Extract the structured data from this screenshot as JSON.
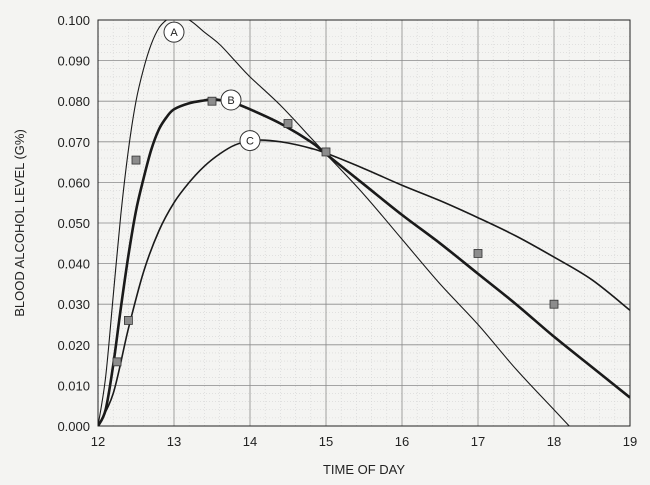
{
  "chart_data": {
    "type": "line",
    "xlabel": "TIME OF DAY",
    "ylabel": "BLOOD ALCOHOL LEVEL (G%)",
    "xlim": [
      12,
      19
    ],
    "ylim": [
      0,
      0.1
    ],
    "x_ticks": [
      "12",
      "13",
      "14",
      "15",
      "16",
      "17",
      "18",
      "19"
    ],
    "y_ticks": [
      "0.000",
      "0.010",
      "0.020",
      "0.030",
      "0.040",
      "0.050",
      "0.060",
      "0.070",
      "0.080",
      "0.090",
      "0.100"
    ],
    "grid": true,
    "series": [
      {
        "name": "A",
        "x": [
          12.0,
          12.1,
          12.2,
          12.3,
          12.4,
          12.5,
          12.6,
          12.7,
          12.8,
          12.9,
          13.0,
          13.2,
          13.4,
          13.6,
          13.8,
          14.0,
          14.4,
          14.8,
          15.0,
          15.5,
          16.0,
          16.5,
          17.0,
          17.5,
          18.0,
          18.3
        ],
        "y": [
          0.0,
          0.012,
          0.032,
          0.052,
          0.068,
          0.08,
          0.088,
          0.094,
          0.098,
          0.1,
          0.101,
          0.1,
          0.097,
          0.094,
          0.09,
          0.086,
          0.079,
          0.071,
          0.067,
          0.057,
          0.046,
          0.035,
          0.025,
          0.014,
          0.004,
          -0.002
        ]
      },
      {
        "name": "B",
        "x": [
          12.0,
          12.1,
          12.2,
          12.3,
          12.4,
          12.5,
          12.6,
          12.7,
          12.8,
          12.9,
          13.0,
          13.2,
          13.4,
          13.5,
          13.6,
          13.8,
          14.0,
          14.4,
          14.8,
          15.0,
          15.5,
          16.0,
          16.5,
          17.0,
          17.5,
          18.0,
          18.5,
          19.0
        ],
        "y": [
          0.0,
          0.004,
          0.015,
          0.029,
          0.042,
          0.053,
          0.061,
          0.068,
          0.073,
          0.076,
          0.078,
          0.0795,
          0.0802,
          0.0805,
          0.0803,
          0.0795,
          0.078,
          0.0745,
          0.07,
          0.067,
          0.0595,
          0.052,
          0.045,
          0.0375,
          0.03,
          0.022,
          0.0145,
          0.007
        ]
      },
      {
        "name": "C",
        "x": [
          12.0,
          12.2,
          12.4,
          12.6,
          12.8,
          13.0,
          13.2,
          13.4,
          13.6,
          13.8,
          14.0,
          14.2,
          14.5,
          14.8,
          15.0,
          15.5,
          16.0,
          16.5,
          17.0,
          17.5,
          18.0,
          18.5,
          19.0
        ],
        "y": [
          0.0,
          0.008,
          0.024,
          0.038,
          0.048,
          0.055,
          0.06,
          0.064,
          0.067,
          0.0692,
          0.0702,
          0.0704,
          0.0697,
          0.0684,
          0.0672,
          0.0634,
          0.0593,
          0.0555,
          0.0513,
          0.0468,
          0.0416,
          0.036,
          0.0285
        ]
      }
    ],
    "points": {
      "x": [
        12.25,
        12.4,
        12.5,
        13.5,
        14.5,
        15.0,
        17.0,
        18.0
      ],
      "y": [
        0.0158,
        0.026,
        0.0655,
        0.08,
        0.0745,
        0.0675,
        0.0425,
        0.03
      ]
    },
    "curve_labels": [
      {
        "text": "A",
        "x": 13.0,
        "y": 0.097
      },
      {
        "text": "B",
        "x": 13.75,
        "y": 0.0803
      },
      {
        "text": "C",
        "x": 14.0,
        "y": 0.0703
      }
    ]
  }
}
